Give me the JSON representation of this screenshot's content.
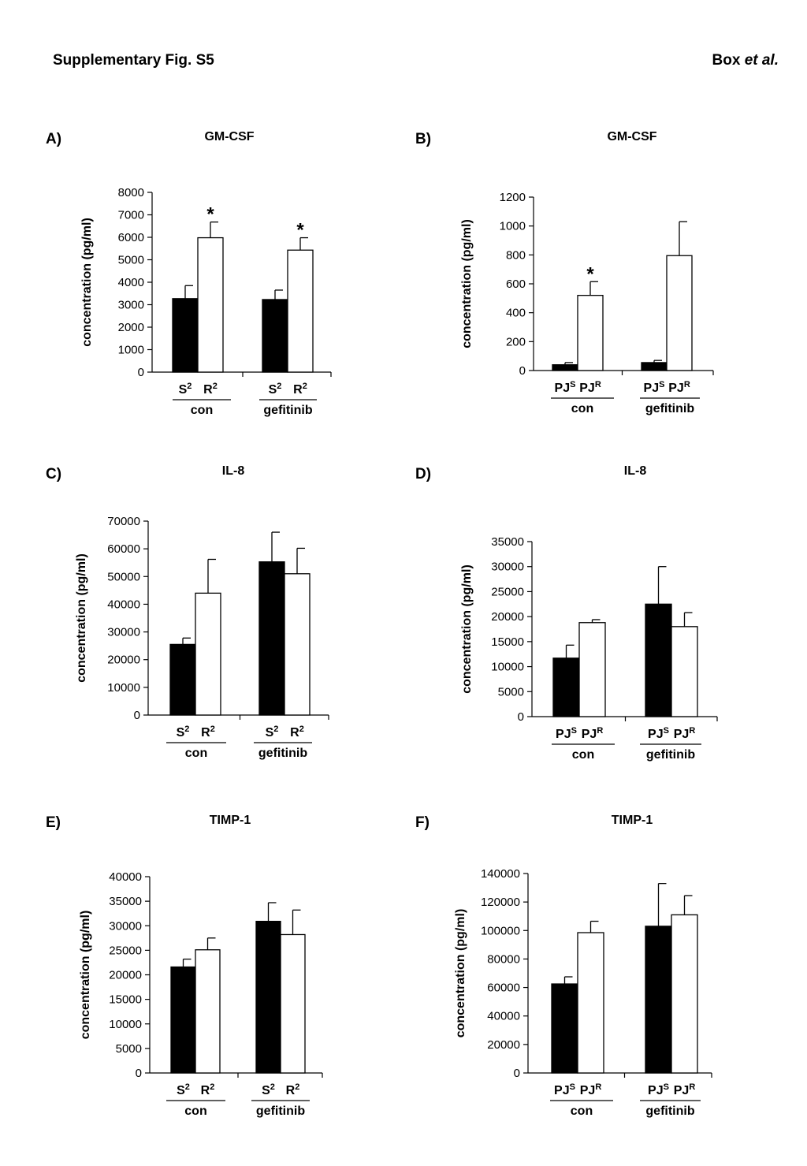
{
  "header": {
    "left": "Supplementary Fig. S5",
    "right_plain": "Box ",
    "right_italic": "et al."
  },
  "panels": [
    {
      "letter": "A)",
      "title": "GM-CSF"
    },
    {
      "letter": "B)",
      "title": "GM-CSF"
    },
    {
      "letter": "C)",
      "title": "IL-8"
    },
    {
      "letter": "D)",
      "title": "IL-8"
    },
    {
      "letter": "E)",
      "title": "TIMP-1"
    },
    {
      "letter": "F)",
      "title": "TIMP-1"
    }
  ],
  "colors": {
    "black_bar": "#000000",
    "white_bar": "#ffffff"
  },
  "chart_data": [
    {
      "type": "bar",
      "title": "GM-CSF",
      "ylabel": "concentration (pg/ml)",
      "ylim": [
        0,
        8000
      ],
      "yticks": [
        0,
        1000,
        2000,
        3000,
        4000,
        5000,
        6000,
        7000,
        8000
      ],
      "groups": [
        "con",
        "gefitinib"
      ],
      "bar_labels": [
        {
          "base": "S",
          "sup": "2"
        },
        {
          "base": "R",
          "sup": "2"
        }
      ],
      "series": [
        {
          "name": "S2",
          "color": "black",
          "values": [
            3270,
            3230
          ],
          "errors": [
            580,
            420
          ]
        },
        {
          "name": "R2",
          "color": "white",
          "values": [
            5980,
            5430
          ],
          "errors": [
            700,
            550
          ]
        }
      ],
      "significance": [
        {
          "group": 0,
          "bar": 1,
          "mark": "*"
        },
        {
          "group": 1,
          "bar": 1,
          "mark": "*"
        }
      ]
    },
    {
      "type": "bar",
      "title": "GM-CSF",
      "ylabel": "concentration (pg/ml)",
      "ylim": [
        0,
        1200
      ],
      "yticks": [
        0,
        200,
        400,
        600,
        800,
        1000,
        1200
      ],
      "groups": [
        "con",
        "gefitinib"
      ],
      "bar_labels": [
        {
          "base": "PJ",
          "sup": "S"
        },
        {
          "base": "PJ",
          "sup": "R"
        }
      ],
      "series": [
        {
          "name": "PJS",
          "color": "black",
          "values": [
            40,
            55
          ],
          "errors": [
            15,
            15
          ]
        },
        {
          "name": "PJR",
          "color": "white",
          "values": [
            520,
            795
          ],
          "errors": [
            95,
            235
          ]
        }
      ],
      "significance": [
        {
          "group": 0,
          "bar": 1,
          "mark": "*"
        }
      ]
    },
    {
      "type": "bar",
      "title": "IL-8",
      "ylabel": "concentration (pg/ml)",
      "ylim": [
        0,
        70000
      ],
      "yticks": [
        0,
        10000,
        20000,
        30000,
        40000,
        50000,
        60000,
        70000
      ],
      "groups": [
        "con",
        "gefitinib"
      ],
      "bar_labels": [
        {
          "base": "S",
          "sup": "2"
        },
        {
          "base": "R",
          "sup": "2"
        }
      ],
      "series": [
        {
          "name": "S2",
          "color": "black",
          "values": [
            25500,
            55300
          ],
          "errors": [
            2300,
            10700
          ]
        },
        {
          "name": "R2",
          "color": "white",
          "values": [
            44000,
            51000
          ],
          "errors": [
            12200,
            9200
          ]
        }
      ],
      "significance": []
    },
    {
      "type": "bar",
      "title": "IL-8",
      "ylabel": "concentration (pg/ml)",
      "ylim": [
        0,
        35000
      ],
      "yticks": [
        0,
        5000,
        10000,
        15000,
        20000,
        25000,
        30000,
        35000
      ],
      "groups": [
        "con",
        "gefitinib"
      ],
      "bar_labels": [
        {
          "base": "PJ",
          "sup": "S"
        },
        {
          "base": "PJ",
          "sup": "R"
        }
      ],
      "series": [
        {
          "name": "PJS",
          "color": "black",
          "values": [
            11700,
            22500
          ],
          "errors": [
            2600,
            7500
          ]
        },
        {
          "name": "PJR",
          "color": "white",
          "values": [
            18800,
            18000
          ],
          "errors": [
            600,
            2800
          ]
        }
      ],
      "significance": []
    },
    {
      "type": "bar",
      "title": "TIMP-1",
      "ylabel": "concentration (pg/ml)",
      "ylim": [
        0,
        40000
      ],
      "yticks": [
        0,
        5000,
        10000,
        15000,
        20000,
        25000,
        30000,
        35000,
        40000
      ],
      "groups": [
        "con",
        "gefitinib"
      ],
      "bar_labels": [
        {
          "base": "S",
          "sup": "2"
        },
        {
          "base": "R",
          "sup": "2"
        }
      ],
      "series": [
        {
          "name": "S2",
          "color": "black",
          "values": [
            21600,
            30900
          ],
          "errors": [
            1600,
            3800
          ]
        },
        {
          "name": "R2",
          "color": "white",
          "values": [
            25100,
            28200
          ],
          "errors": [
            2400,
            5000
          ]
        }
      ],
      "significance": []
    },
    {
      "type": "bar",
      "title": "TIMP-1",
      "ylabel": "concentration (pg/ml)",
      "ylim": [
        0,
        140000
      ],
      "yticks": [
        0,
        20000,
        40000,
        60000,
        80000,
        100000,
        120000,
        140000
      ],
      "groups": [
        "con",
        "gefitinib"
      ],
      "bar_labels": [
        {
          "base": "PJ",
          "sup": "S"
        },
        {
          "base": "PJ",
          "sup": "R"
        }
      ],
      "series": [
        {
          "name": "PJS",
          "color": "black",
          "values": [
            62500,
            103000
          ],
          "errors": [
            5000,
            30000
          ]
        },
        {
          "name": "PJR",
          "color": "white",
          "values": [
            98500,
            111000
          ],
          "errors": [
            8000,
            13500
          ]
        }
      ],
      "significance": []
    }
  ]
}
